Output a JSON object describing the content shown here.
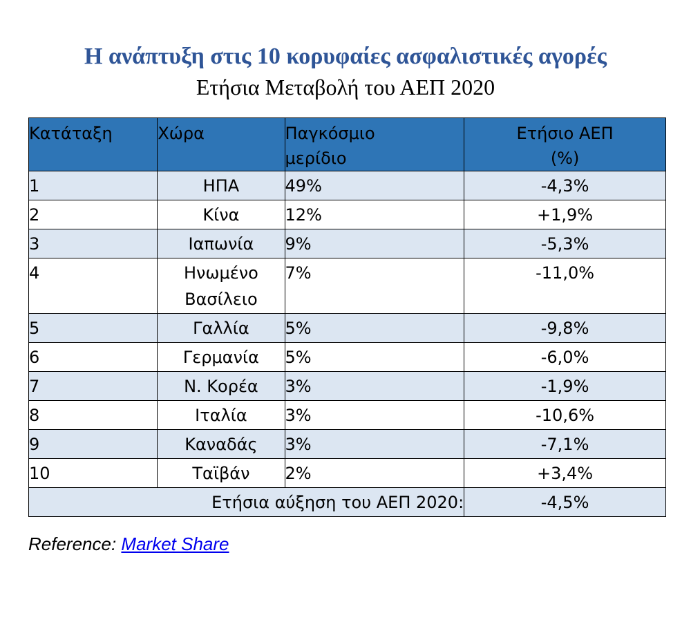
{
  "title": "Η ανάπτυξη στις 10 κορυφαίες ασφαλιστικές αγορές",
  "subtitle": "Ετήσια Μεταβολή του ΑΕΠ 2020",
  "table": {
    "headers": {
      "rank": "Κατάταξη",
      "country": "Χώρα",
      "share_line1": "Παγκόσμιο",
      "share_line2": "μερίδιο",
      "gdp_line1": "Ετήσιο ΑΕΠ",
      "gdp_line2": "(%)"
    },
    "rows": [
      {
        "rank": "1",
        "country_line1": "ΗΠΑ",
        "country_line2": "",
        "share": "49%",
        "gdp": "-4,3%"
      },
      {
        "rank": "2",
        "country_line1": "Κίνα",
        "country_line2": "",
        "share": "12%",
        "gdp": "+1,9%"
      },
      {
        "rank": "3",
        "country_line1": "Ιαπωνία",
        "country_line2": "",
        "share": "9%",
        "gdp": "-5,3%"
      },
      {
        "rank": "4",
        "country_line1": "Ηνωμένο",
        "country_line2": "Βασίλειο",
        "share": "7%",
        "gdp": "-11,0%"
      },
      {
        "rank": "5",
        "country_line1": "Γαλλία",
        "country_line2": "",
        "share": "5%",
        "gdp": "-9,8%"
      },
      {
        "rank": "6",
        "country_line1": "Γερμανία",
        "country_line2": "",
        "share": "5%",
        "gdp": "-6,0%"
      },
      {
        "rank": "7",
        "country_line1": "Ν. Κορέα",
        "country_line2": "",
        "share": "3%",
        "gdp": "-1,9%"
      },
      {
        "rank": "8",
        "country_line1": "Ιταλία",
        "country_line2": "",
        "share": "3%",
        "gdp": "-10,6%"
      },
      {
        "rank": "9",
        "country_line1": "Καναδάς",
        "country_line2": "",
        "share": "3%",
        "gdp": "-7,1%"
      },
      {
        "rank": "10",
        "country_line1": "Ταϊβάν",
        "country_line2": "",
        "share": "2%",
        "gdp": "+3,4%"
      }
    ],
    "total": {
      "label": "Ετήσια αύξηση του ΑΕΠ 2020:",
      "gdp": "-4,5%"
    }
  },
  "reference": {
    "label": "Reference:",
    "link_text": "Market Share"
  },
  "colors": {
    "title": "#2f5597",
    "header_bg": "#2e75b6",
    "row_shade": "#dce6f2",
    "link": "#0000ee"
  }
}
